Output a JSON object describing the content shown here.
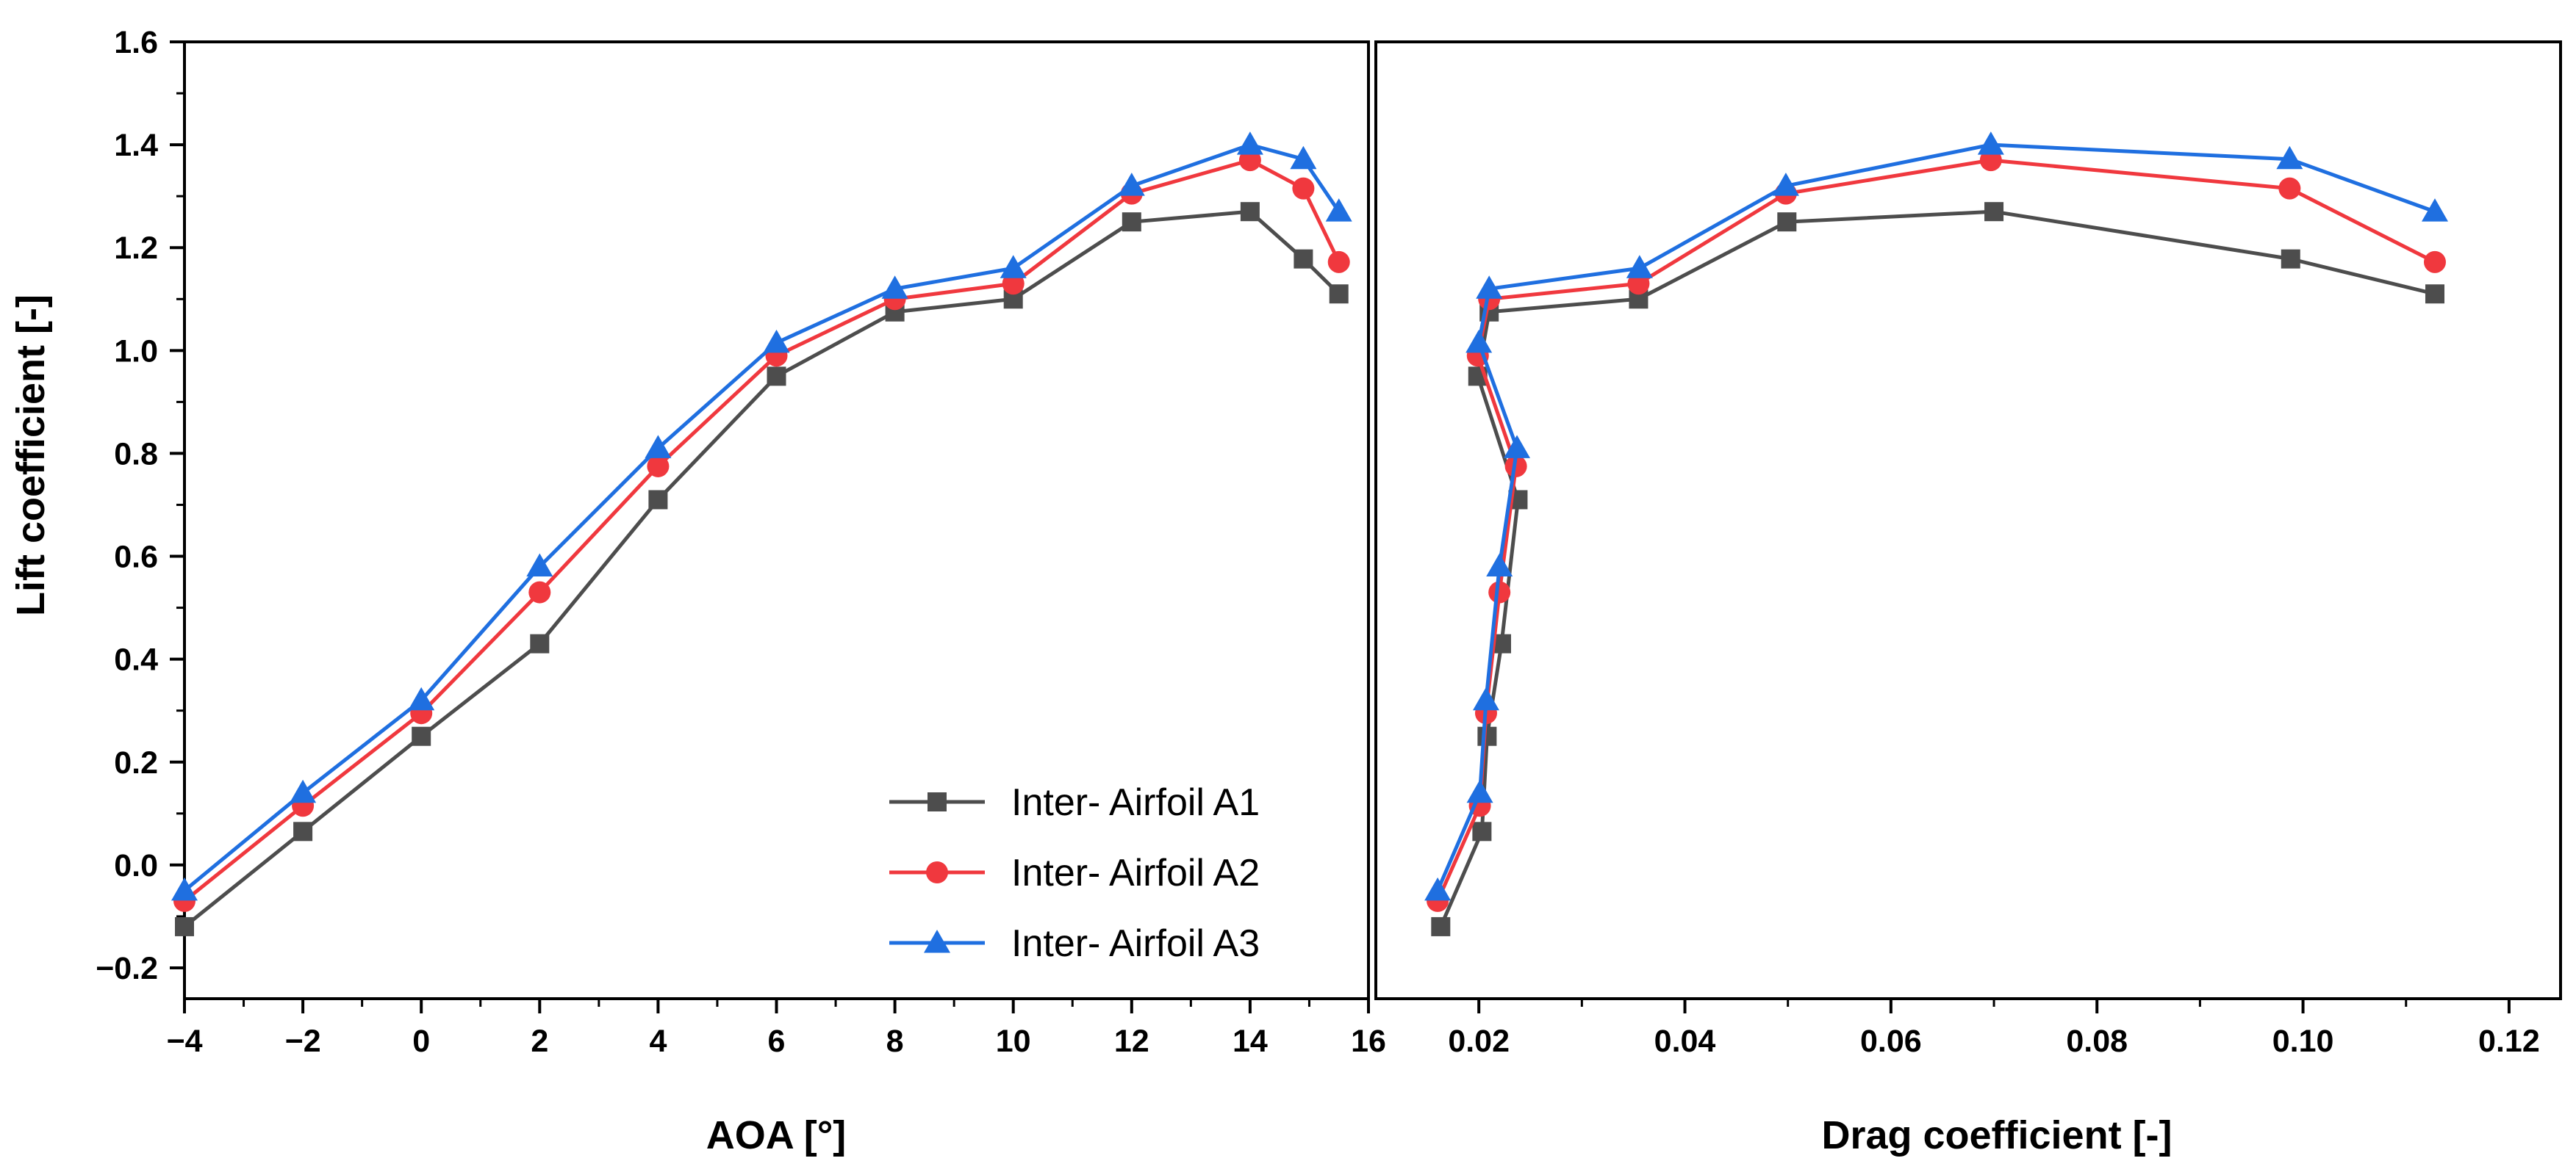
{
  "chart_data": [
    {
      "type": "line",
      "panel": "left",
      "title": "",
      "xlabel": "AOA [°]",
      "ylabel": "Lift coefficient [-]",
      "xlim": [
        -4,
        16
      ],
      "ylim": [
        -0.26,
        1.6
      ],
      "xticks": [
        -4,
        -2,
        0,
        2,
        4,
        6,
        8,
        10,
        12,
        14,
        16
      ],
      "xtick_labels": [
        "−4",
        "−2",
        "0",
        "2",
        "4",
        "6",
        "8",
        "10",
        "12",
        "14",
        "16"
      ],
      "yticks": [
        -0.2,
        0.0,
        0.2,
        0.4,
        0.6,
        0.8,
        1.0,
        1.2,
        1.4,
        1.6
      ],
      "ytick_labels": [
        "−0.2",
        "0.0",
        "0.2",
        "0.4",
        "0.6",
        "0.8",
        "1.0",
        "1.2",
        "1.4",
        "1.6"
      ],
      "grid": false,
      "legend_position": "bottom-right",
      "x": [
        -4,
        -2,
        0,
        2,
        4,
        6,
        8,
        10,
        12,
        14,
        14.9,
        15.5
      ],
      "series": [
        {
          "name": "Inter- Airfoil A1",
          "color": "#4d4d4d",
          "marker": "square",
          "values": [
            -0.12,
            0.065,
            0.25,
            0.43,
            0.71,
            0.95,
            1.075,
            1.1,
            1.25,
            1.27,
            1.178,
            1.11
          ]
        },
        {
          "name": "Inter- Airfoil A2",
          "color": "#f0383e",
          "marker": "circle",
          "values": [
            -0.07,
            0.115,
            0.295,
            0.53,
            0.775,
            0.99,
            1.1,
            1.13,
            1.305,
            1.37,
            1.315,
            1.172
          ]
        },
        {
          "name": "Inter- Airfoil A3",
          "color": "#1f6fe0",
          "marker": "triangle",
          "values": [
            -0.05,
            0.14,
            0.32,
            0.58,
            0.81,
            1.015,
            1.12,
            1.16,
            1.32,
            1.4,
            1.372,
            1.27
          ]
        }
      ]
    },
    {
      "type": "line",
      "panel": "right",
      "title": "",
      "xlabel": "Drag coefficient [-]",
      "ylabel": "",
      "xlim": [
        0.01,
        0.125
      ],
      "ylim": [
        -0.26,
        1.6
      ],
      "xticks": [
        0.02,
        0.04,
        0.06,
        0.08,
        0.1,
        0.12
      ],
      "xtick_labels": [
        "0.02",
        "0.04",
        "0.06",
        "0.08",
        "0.10",
        "0.12"
      ],
      "grid": false,
      "series": [
        {
          "name": "Inter- Airfoil A1",
          "color": "#4d4d4d",
          "marker": "square",
          "x": [
            0.0163,
            0.0203,
            0.0208,
            0.0222,
            0.0238,
            0.0199,
            0.021,
            0.0355,
            0.0499,
            0.07,
            0.0988,
            0.1128
          ],
          "y": [
            -0.12,
            0.065,
            0.25,
            0.43,
            0.71,
            0.95,
            1.075,
            1.1,
            1.25,
            1.27,
            1.178,
            1.11
          ]
        },
        {
          "name": "Inter- Airfoil A2",
          "color": "#f0383e",
          "marker": "circle",
          "x": [
            0.016,
            0.0201,
            0.0207,
            0.022,
            0.0236,
            0.0199,
            0.021,
            0.0355,
            0.0498,
            0.0697,
            0.0987,
            0.1128
          ],
          "y": [
            -0.07,
            0.115,
            0.295,
            0.53,
            0.775,
            0.99,
            1.1,
            1.13,
            1.305,
            1.37,
            1.315,
            1.172
          ]
        },
        {
          "name": "Inter- Airfoil A3",
          "color": "#1f6fe0",
          "marker": "triangle",
          "x": [
            0.016,
            0.0201,
            0.0207,
            0.022,
            0.0237,
            0.02,
            0.021,
            0.0356,
            0.0498,
            0.0697,
            0.0987,
            0.1128
          ],
          "y": [
            -0.05,
            0.14,
            0.32,
            0.58,
            0.81,
            1.015,
            1.12,
            1.16,
            1.32,
            1.4,
            1.372,
            1.27
          ]
        }
      ]
    }
  ]
}
